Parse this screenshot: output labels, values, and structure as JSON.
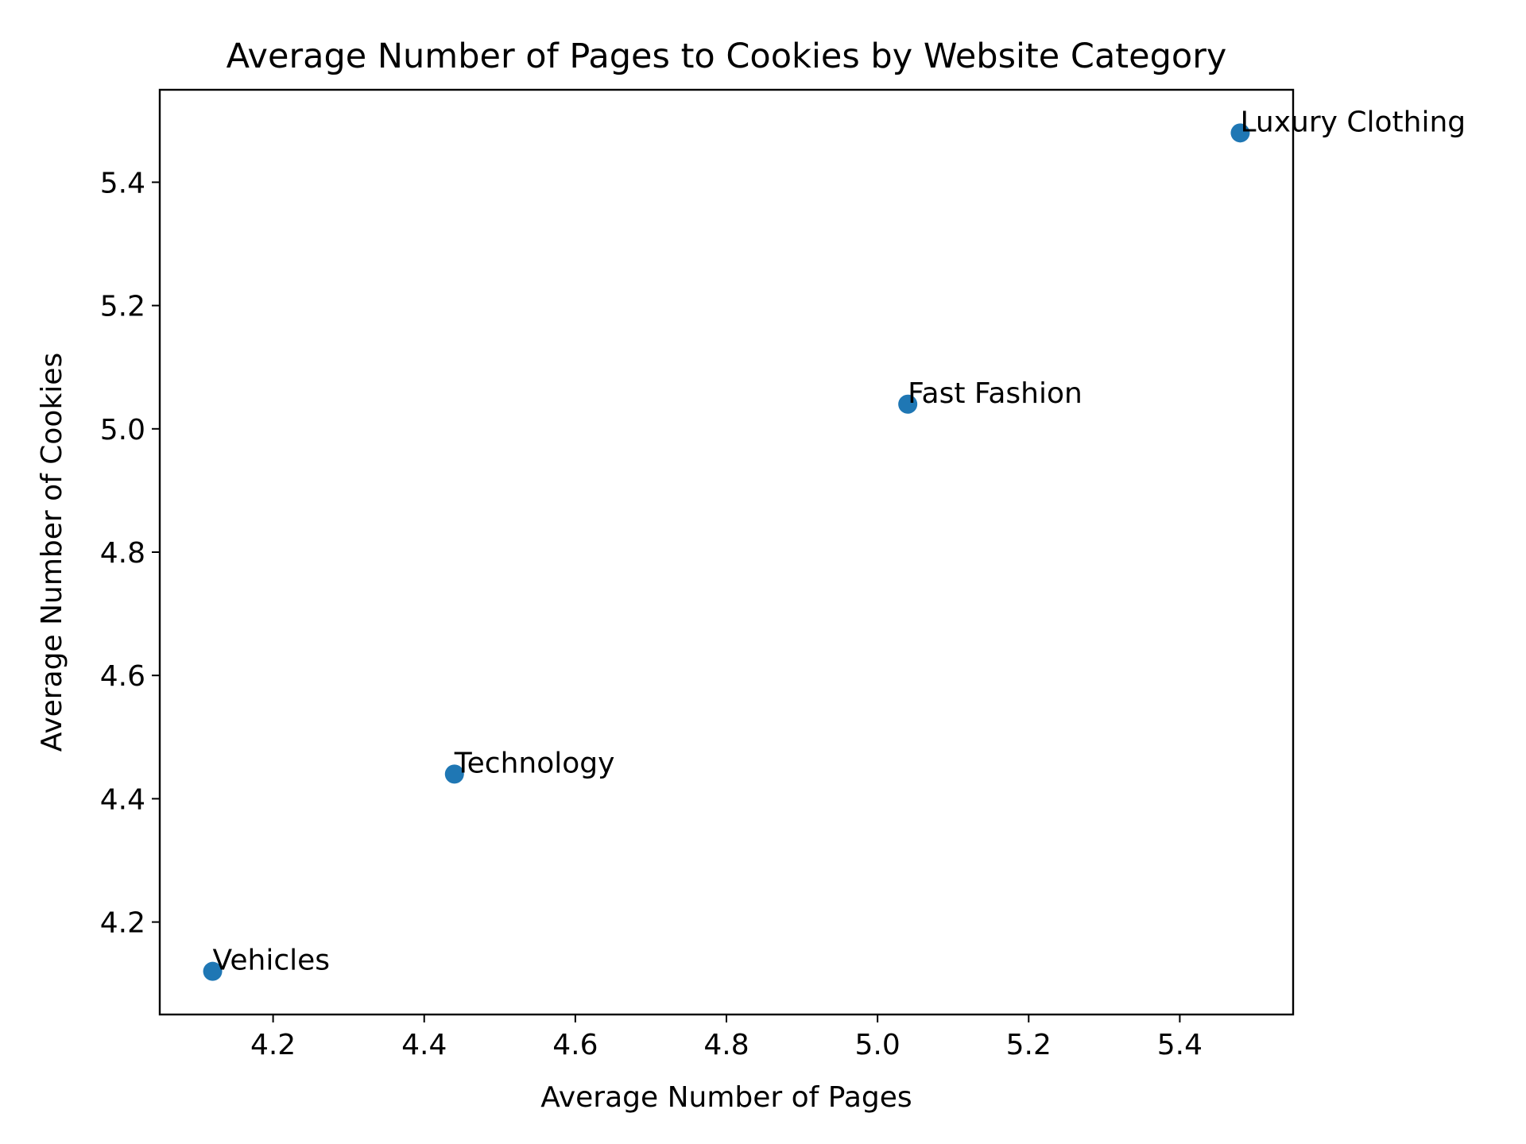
{
  "chart_data": {
    "type": "scatter",
    "title": "Average Number of Pages to Cookies by Website Category",
    "xlabel": "Average Number of Pages",
    "ylabel": "Average Number of Cookies",
    "xlim": [
      4.05,
      5.55
    ],
    "ylim": [
      4.05,
      5.55
    ],
    "xticks": [
      4.2,
      4.4,
      4.6,
      4.8,
      5.0,
      5.2,
      5.4
    ],
    "yticks": [
      4.2,
      4.4,
      4.6,
      4.8,
      5.0,
      5.2,
      5.4
    ],
    "grid": false,
    "marker_color": "#1f77b4",
    "points": [
      {
        "label": "Vehicles",
        "x": 4.12,
        "y": 4.12
      },
      {
        "label": "Technology",
        "x": 4.44,
        "y": 4.44
      },
      {
        "label": "Fast Fashion",
        "x": 5.04,
        "y": 5.04
      },
      {
        "label": "Luxury Clothing",
        "x": 5.48,
        "y": 5.48
      }
    ]
  }
}
